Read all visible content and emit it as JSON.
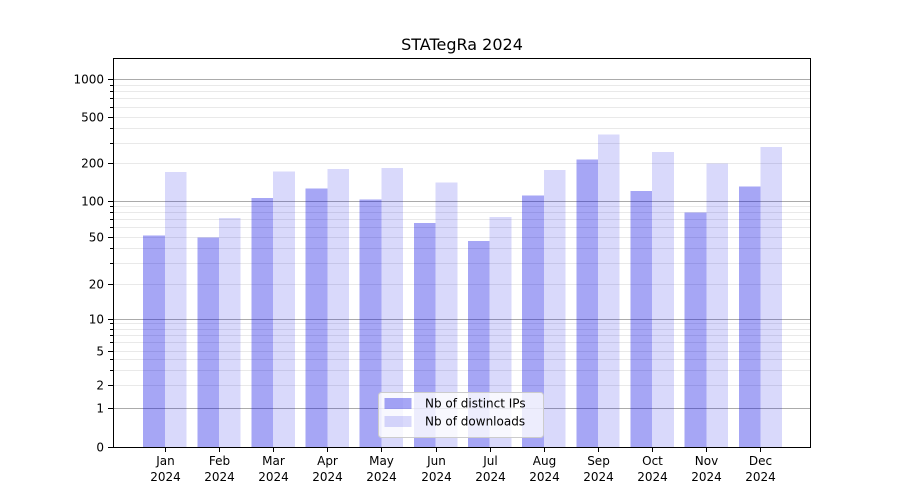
{
  "chart_data": {
    "type": "bar",
    "title": "STATegRa 2024",
    "categories": [
      "Jan",
      "Feb",
      "Mar",
      "Apr",
      "May",
      "Jun",
      "Jul",
      "Aug",
      "Sep",
      "Oct",
      "Nov",
      "Dec"
    ],
    "x_tick_year": "2024",
    "series": [
      {
        "name": "Nb of distinct IPs",
        "color": "rgba(0,0,225,0.35)",
        "values": [
          51,
          49,
          105,
          125,
          102,
          65,
          46,
          110,
          215,
          120,
          80,
          130
        ]
      },
      {
        "name": "Nb of downloads",
        "color": "rgba(0,0,225,0.15)",
        "values": [
          170,
          72,
          172,
          180,
          183,
          140,
          73,
          177,
          350,
          250,
          200,
          275
        ]
      }
    ],
    "y_ticks": [
      0,
      1,
      2,
      5,
      10,
      20,
      50,
      100,
      200,
      500,
      1000
    ],
    "y_scale": "symlog (logarithmic above 1, compressed near 0)",
    "ylim": [
      0,
      1500
    ],
    "xlabel": "",
    "ylabel": "",
    "grid": true,
    "legend_position": "lower center",
    "colors": {
      "major_gridline": "#ababab",
      "minor_gridline": "#e9e9e9",
      "axis": "#000000",
      "legend_border": "#cccccc",
      "background": "#ffffff"
    }
  }
}
